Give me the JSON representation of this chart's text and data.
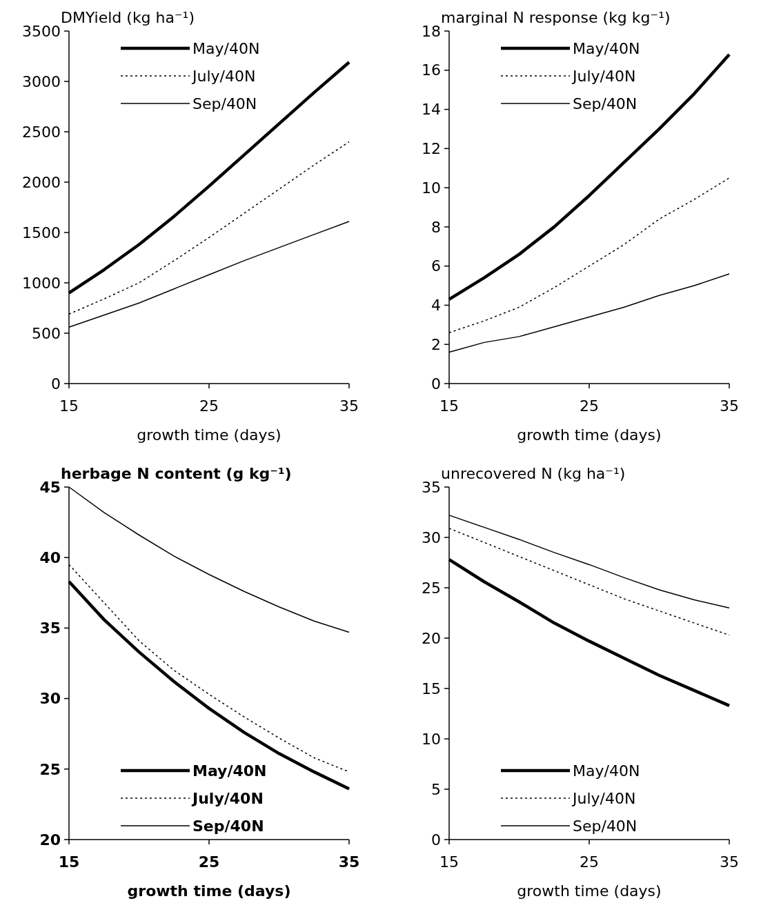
{
  "chart_data": [
    {
      "type": "line",
      "title": "DMYield (kg ha⁻¹)",
      "xlabel": "growth time (days)",
      "x": [
        15,
        17.5,
        20,
        22.5,
        25,
        27.5,
        30,
        32.5,
        35
      ],
      "xlim": [
        15,
        35
      ],
      "xticks": [
        15,
        25,
        35
      ],
      "ylim": [
        0,
        3500
      ],
      "yticks": [
        0,
        500,
        1000,
        1500,
        2000,
        2500,
        3000,
        3500
      ],
      "grid": false,
      "legend": "top left",
      "series": [
        {
          "name": "May/40N",
          "color": "#000000",
          "line_style": "solid",
          "values": [
            900,
            1130,
            1380,
            1660,
            1960,
            2270,
            2580,
            2890,
            3190
          ]
        },
        {
          "name": "July/40N",
          "color": "#000000",
          "line_style": "dotted",
          "values": [
            690,
            840,
            1000,
            1220,
            1450,
            1690,
            1930,
            2170,
            2400
          ]
        },
        {
          "name": "Sep/40N",
          "color": "#000000",
          "line_style": "solid",
          "values": [
            560,
            680,
            800,
            940,
            1080,
            1220,
            1350,
            1480,
            1610
          ]
        }
      ]
    },
    {
      "type": "line",
      "title": "marginal N response  (kg kg⁻¹)",
      "xlabel": "growth time (days)",
      "x": [
        15,
        17.5,
        20,
        22.5,
        25,
        27.5,
        30,
        32.5,
        35
      ],
      "xlim": [
        15,
        35
      ],
      "xticks": [
        15,
        25,
        35
      ],
      "ylim": [
        0,
        18
      ],
      "yticks": [
        0,
        2,
        4,
        6,
        8,
        10,
        12,
        14,
        16,
        18
      ],
      "grid": false,
      "legend": "top left",
      "series": [
        {
          "name": "May/40N",
          "color": "#000000",
          "line_style": "solid",
          "values": [
            4.3,
            5.4,
            6.6,
            8.0,
            9.6,
            11.3,
            13.0,
            14.8,
            16.8
          ]
        },
        {
          "name": "July/40N",
          "color": "#000000",
          "line_style": "dotted",
          "values": [
            2.6,
            3.2,
            3.9,
            4.9,
            6.0,
            7.1,
            8.4,
            9.4,
            10.5
          ]
        },
        {
          "name": "Sep/40N",
          "color": "#000000",
          "line_style": "solid",
          "values": [
            1.6,
            2.1,
            2.4,
            2.9,
            3.4,
            3.9,
            4.5,
            5.0,
            5.6
          ]
        }
      ]
    },
    {
      "type": "line",
      "title": "herbage N content (g kg⁻¹)",
      "xlabel": "growth time (days)",
      "x": [
        15,
        17.5,
        20,
        22.5,
        25,
        27.5,
        30,
        32.5,
        35
      ],
      "xlim": [
        15,
        35
      ],
      "xticks": [
        15,
        25,
        35
      ],
      "ylim": [
        20,
        45
      ],
      "yticks": [
        20,
        25,
        30,
        35,
        40,
        45
      ],
      "grid": false,
      "legend": "bottom left",
      "series": [
        {
          "name": "May/40N",
          "color": "#000000",
          "line_style": "solid",
          "values": [
            38.3,
            35.6,
            33.3,
            31.2,
            29.3,
            27.6,
            26.1,
            24.8,
            23.6
          ]
        },
        {
          "name": "July/40N",
          "color": "#000000",
          "line_style": "dotted",
          "values": [
            39.5,
            36.8,
            34.1,
            32.0,
            30.3,
            28.7,
            27.2,
            25.8,
            24.8
          ]
        },
        {
          "name": "Sep/40N",
          "color": "#000000",
          "line_style": "solid",
          "values": [
            45.0,
            43.2,
            41.6,
            40.1,
            38.8,
            37.6,
            36.5,
            35.5,
            34.7
          ]
        }
      ]
    },
    {
      "type": "line",
      "title": "unrecovered N (kg ha⁻¹)",
      "xlabel": "growth time (days)",
      "x": [
        15,
        17.5,
        20,
        22.5,
        25,
        27.5,
        30,
        32.5,
        35
      ],
      "xlim": [
        15,
        35
      ],
      "xticks": [
        15,
        25,
        35
      ],
      "ylim": [
        0,
        35
      ],
      "yticks": [
        0,
        5,
        10,
        15,
        20,
        25,
        30,
        35
      ],
      "grid": false,
      "legend": "bottom left",
      "series": [
        {
          "name": "May/40N",
          "color": "#000000",
          "line_style": "solid",
          "values": [
            27.8,
            25.6,
            23.6,
            21.5,
            19.7,
            18.0,
            16.3,
            14.8,
            13.3
          ]
        },
        {
          "name": "July/40N",
          "color": "#000000",
          "line_style": "dotted",
          "values": [
            30.9,
            29.5,
            28.1,
            26.7,
            25.3,
            23.9,
            22.7,
            21.5,
            20.3
          ]
        },
        {
          "name": "Sep/40N",
          "color": "#000000",
          "line_style": "solid",
          "values": [
            32.2,
            31.0,
            29.8,
            28.5,
            27.3,
            26.0,
            24.8,
            23.8,
            23.0
          ]
        }
      ]
    }
  ]
}
